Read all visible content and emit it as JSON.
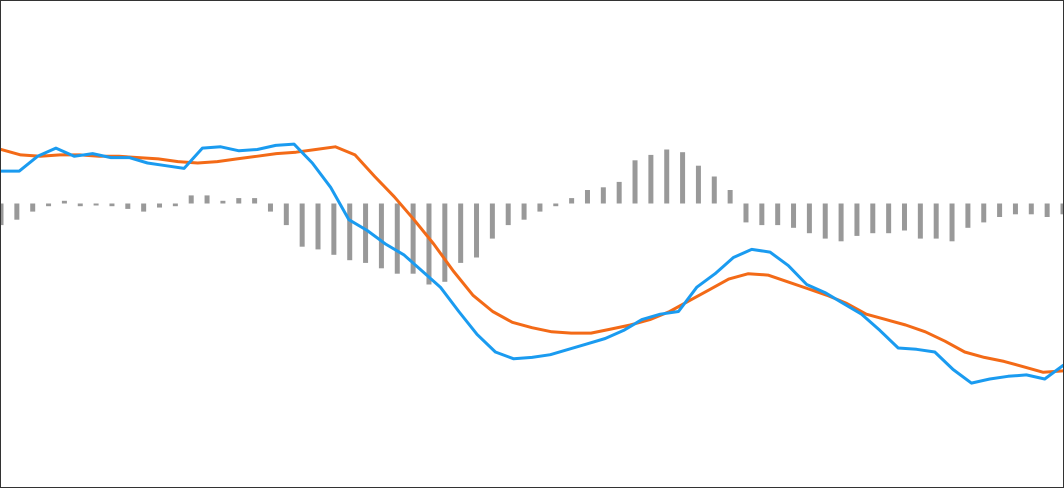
{
  "chart_data": {
    "type": "line",
    "title": "",
    "xlabel": "",
    "ylabel": "",
    "grid": false,
    "legend": "none",
    "x_count": 77,
    "ylim": [
      -2.1,
      1.5
    ],
    "colors": {
      "macd": "#1a9bf0",
      "signal": "#f36a17",
      "histogram": "#999999"
    },
    "series": [
      {
        "key": "macd",
        "values": [
          0.24,
          0.24,
          0.35,
          0.41,
          0.35,
          0.37,
          0.34,
          0.34,
          0.3,
          0.28,
          0.26,
          0.41,
          0.42,
          0.39,
          0.4,
          0.43,
          0.44,
          0.3,
          0.12,
          -0.12,
          -0.2,
          -0.3,
          -0.38,
          -0.5,
          -0.62,
          -0.8,
          -0.97,
          -1.1,
          -1.15,
          -1.14,
          -1.12,
          -1.08,
          -1.04,
          -1.0,
          -0.94,
          -0.86,
          -0.82,
          -0.8,
          -0.62,
          -0.52,
          -0.4,
          -0.34,
          -0.36,
          -0.46,
          -0.6,
          -0.66,
          -0.74,
          -0.82,
          -0.94,
          -1.07,
          -1.08,
          -1.1,
          -1.23,
          -1.33,
          -1.3,
          -1.28,
          -1.27,
          -1.3,
          -1.2
        ]
      },
      {
        "key": "signal",
        "values": [
          0.4,
          0.36,
          0.35,
          0.36,
          0.36,
          0.35,
          0.35,
          0.34,
          0.33,
          0.31,
          0.3,
          0.31,
          0.33,
          0.35,
          0.37,
          0.38,
          0.4,
          0.42,
          0.36,
          0.2,
          0.05,
          -0.12,
          -0.3,
          -0.5,
          -0.68,
          -0.8,
          -0.88,
          -0.92,
          -0.95,
          -0.96,
          -0.96,
          -0.93,
          -0.9,
          -0.86,
          -0.8,
          -0.72,
          -0.64,
          -0.56,
          -0.52,
          -0.53,
          -0.58,
          -0.63,
          -0.68,
          -0.74,
          -0.82,
          -0.86,
          -0.9,
          -0.95,
          -1.02,
          -1.1,
          -1.14,
          -1.17,
          -1.21,
          -1.25,
          -1.24
        ]
      },
      {
        "key": "histogram",
        "values": [
          -0.16,
          -0.12,
          -0.06,
          -0.02,
          0.02,
          -0.02,
          -0.01,
          -0.02,
          -0.04,
          -0.06,
          -0.03,
          -0.02,
          0.06,
          0.06,
          0.02,
          0.04,
          0.04,
          -0.06,
          -0.16,
          -0.32,
          -0.34,
          -0.38,
          -0.42,
          -0.44,
          -0.48,
          -0.52,
          -0.52,
          -0.6,
          -0.58,
          -0.44,
          -0.4,
          -0.26,
          -0.16,
          -0.12,
          -0.06,
          -0.02,
          0.04,
          0.1,
          0.12,
          0.16,
          0.32,
          0.36,
          0.4,
          0.38,
          0.28,
          0.2,
          0.1,
          -0.14,
          -0.16,
          -0.16,
          -0.18,
          -0.22,
          -0.26,
          -0.28,
          -0.24,
          -0.22,
          -0.22,
          -0.2,
          -0.26,
          -0.26,
          -0.28,
          -0.18,
          -0.14,
          -0.1,
          -0.08,
          -0.08,
          -0.1,
          -0.08
        ]
      }
    ]
  }
}
